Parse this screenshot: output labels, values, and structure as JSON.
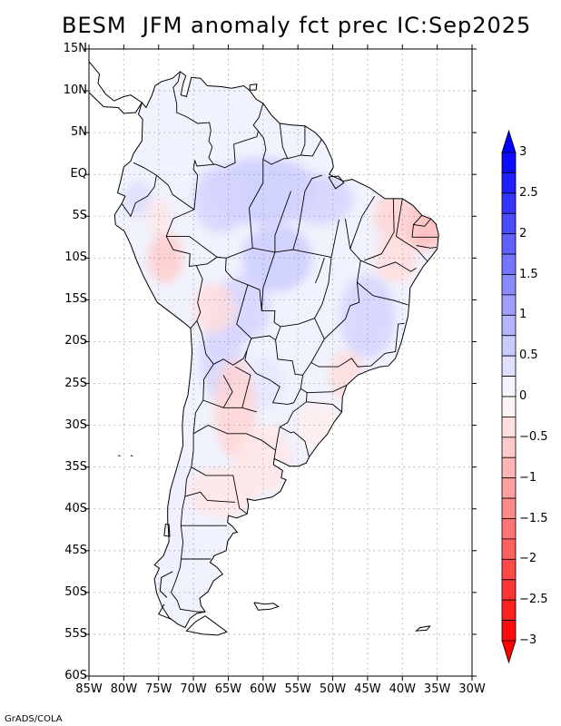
{
  "title": "BESM  JFM anomaly fct prec IC:Sep2025",
  "credit": "GrADS/COLA",
  "map": {
    "region": "South America",
    "projection": "latlon",
    "lon_range": [
      -85,
      -30
    ],
    "lat_range": [
      -60,
      15
    ],
    "lat_ticks": [
      {
        "value": 15,
        "label": "15N"
      },
      {
        "value": 10,
        "label": "10N"
      },
      {
        "value": 5,
        "label": "5N"
      },
      {
        "value": 0,
        "label": "EQ"
      },
      {
        "value": -5,
        "label": "5S"
      },
      {
        "value": -10,
        "label": "10S"
      },
      {
        "value": -15,
        "label": "15S"
      },
      {
        "value": -20,
        "label": "20S"
      },
      {
        "value": -25,
        "label": "25S"
      },
      {
        "value": -30,
        "label": "30S"
      },
      {
        "value": -35,
        "label": "35S"
      },
      {
        "value": -40,
        "label": "40S"
      },
      {
        "value": -45,
        "label": "45S"
      },
      {
        "value": -50,
        "label": "50S"
      },
      {
        "value": -55,
        "label": "55S"
      },
      {
        "value": -60,
        "label": "60S"
      }
    ],
    "lon_ticks": [
      {
        "value": -85,
        "label": "85W"
      },
      {
        "value": -80,
        "label": "80W"
      },
      {
        "value": -75,
        "label": "75W"
      },
      {
        "value": -70,
        "label": "70W"
      },
      {
        "value": -65,
        "label": "65W"
      },
      {
        "value": -60,
        "label": "60W"
      },
      {
        "value": -55,
        "label": "55W"
      },
      {
        "value": -50,
        "label": "50W"
      },
      {
        "value": -45,
        "label": "45W"
      },
      {
        "value": -40,
        "label": "40W"
      },
      {
        "value": -35,
        "label": "35W"
      },
      {
        "value": -30,
        "label": "30W"
      }
    ]
  },
  "colorbar": {
    "min": -3,
    "max": 3,
    "step": 0.25,
    "labels": [
      {
        "value": 3,
        "text": "3"
      },
      {
        "value": 2.5,
        "text": "2.5"
      },
      {
        "value": 2,
        "text": "2"
      },
      {
        "value": 1.5,
        "text": "1.5"
      },
      {
        "value": 1,
        "text": "1"
      },
      {
        "value": 0.5,
        "text": "0.5"
      },
      {
        "value": 0,
        "text": "0"
      },
      {
        "value": -0.5,
        "text": "−0.5"
      },
      {
        "value": -1,
        "text": "−1"
      },
      {
        "value": -1.5,
        "text": "−1.5"
      },
      {
        "value": -2,
        "text": "−2"
      },
      {
        "value": -2.5,
        "text": "−2.5"
      },
      {
        "value": -3,
        "text": "−3"
      }
    ],
    "positive_color": "#0000ff",
    "negative_color": "#ff0000"
  },
  "anomaly_patches": [
    {
      "lon": -60,
      "lat": -2,
      "value": 0.6,
      "rx": 8,
      "ry": 4
    },
    {
      "lon": -52,
      "lat": -3,
      "value": 0.5,
      "rx": 5,
      "ry": 3
    },
    {
      "lon": -66,
      "lat": -3,
      "value": 0.5,
      "rx": 4,
      "ry": 4
    },
    {
      "lon": -58,
      "lat": -10,
      "value": 0.6,
      "rx": 5,
      "ry": 4
    },
    {
      "lon": -63,
      "lat": -16,
      "value": 0.5,
      "rx": 4,
      "ry": 4
    },
    {
      "lon": -45,
      "lat": -17,
      "value": 0.5,
      "rx": 4,
      "ry": 5
    },
    {
      "lon": -66,
      "lat": -22,
      "value": 0.5,
      "rx": 3,
      "ry": 5
    },
    {
      "lon": -60,
      "lat": -25,
      "value": 0.3,
      "rx": 3,
      "ry": 3
    },
    {
      "lon": -73,
      "lat": -40,
      "value": 0.2,
      "rx": 3,
      "ry": 8
    },
    {
      "lon": -78,
      "lat": -3,
      "value": 0.4,
      "rx": 2,
      "ry": 2
    },
    {
      "lon": -37,
      "lat": -6,
      "value": -0.8,
      "rx": 3.5,
      "ry": 3
    },
    {
      "lon": -41,
      "lat": -5,
      "value": -0.5,
      "rx": 3,
      "ry": 3
    },
    {
      "lon": -41,
      "lat": -10,
      "value": -0.4,
      "rx": 3,
      "ry": 3
    },
    {
      "lon": -74,
      "lat": -10,
      "value": -0.6,
      "rx": 2.5,
      "ry": 3
    },
    {
      "lon": -75,
      "lat": -5,
      "value": -0.3,
      "rx": 2,
      "ry": 2
    },
    {
      "lon": -64,
      "lat": -28,
      "value": -0.5,
      "rx": 3,
      "ry": 6
    },
    {
      "lon": -67,
      "lat": -16,
      "value": -0.4,
      "rx": 3,
      "ry": 3
    },
    {
      "lon": -60,
      "lat": -34,
      "value": -0.3,
      "rx": 4,
      "ry": 4
    },
    {
      "lon": -66,
      "lat": -38,
      "value": -0.3,
      "rx": 5,
      "ry": 3
    },
    {
      "lon": -48,
      "lat": -24,
      "value": -0.4,
      "rx": 2.5,
      "ry": 3
    },
    {
      "lon": -52,
      "lat": -30,
      "value": -0.2,
      "rx": 3,
      "ry": 3
    }
  ]
}
